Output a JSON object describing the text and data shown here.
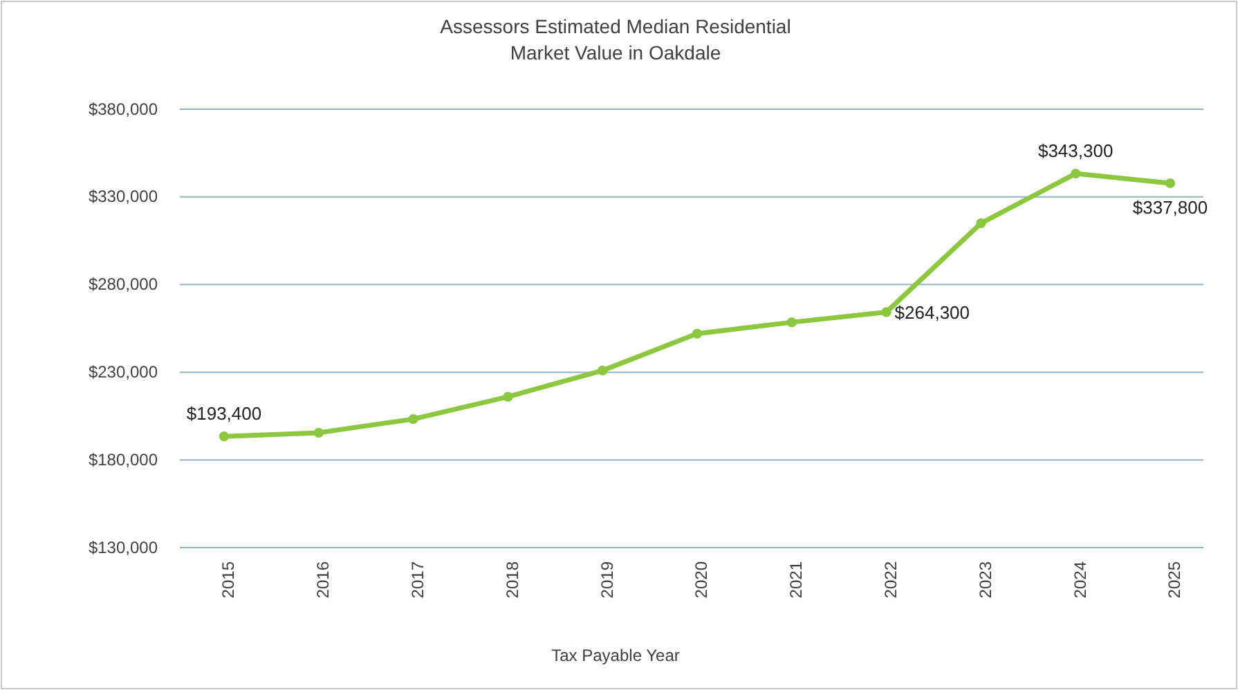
{
  "chart_data": {
    "type": "line",
    "title": "Assessors Estimated Median Residential\nMarket Value in Oakdale",
    "xlabel": "Tax Payable Year",
    "categories": [
      "2015",
      "2016",
      "2017",
      "2018",
      "2019",
      "2020",
      "2021",
      "2022",
      "2023",
      "2024",
      "2025"
    ],
    "series": [
      {
        "color": "#8dc63f",
        "values": [
          193400,
          195500,
          203300,
          216000,
          231000,
          252000,
          258500,
          264300,
          315000,
          343300,
          337800
        ],
        "value_labels": [
          "$193,400",
          null,
          null,
          null,
          null,
          null,
          null,
          "$264,300",
          null,
          "$343,300",
          "$337,800"
        ]
      }
    ],
    "ylim": [
      130000,
      380000
    ],
    "yticks": [
      {
        "value": 130000,
        "label": "$130,000"
      },
      {
        "value": 180000,
        "label": "$180,000"
      },
      {
        "value": 230000,
        "label": "$230,000"
      },
      {
        "value": 280000,
        "label": "$280,000"
      },
      {
        "value": 330000,
        "label": "$330,000"
      },
      {
        "value": 380000,
        "label": "$380,000"
      }
    ],
    "grid": "y",
    "marker": "circle",
    "line_style": "solid"
  }
}
